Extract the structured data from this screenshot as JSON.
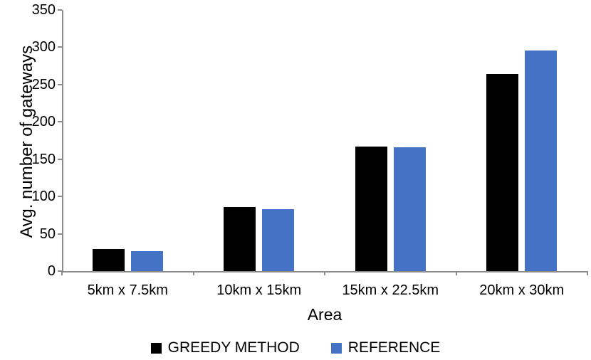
{
  "chart_data": {
    "type": "bar",
    "title": "",
    "categories": [
      "5km x 7.5km",
      "10km x 15km",
      "15km x 22.5km",
      "20km x 30km"
    ],
    "series": [
      {
        "name": "GREEDY METHOD",
        "color": "#000000",
        "values": [
          30,
          86,
          167,
          264
        ]
      },
      {
        "name": "REFERENCE",
        "color": "#4472C4",
        "values": [
          27,
          83,
          166,
          296
        ]
      }
    ],
    "xlabel": "Area",
    "ylabel": "Avg. number of gateways",
    "ylim": [
      0,
      350
    ],
    "ytick_step": 50,
    "yticks": [
      0,
      50,
      100,
      150,
      200,
      250,
      300,
      350
    ],
    "grid": false,
    "legend_position": "bottom",
    "axis_color": "#8c8c8c",
    "text_color": "#000000",
    "background_color": "#ffffff"
  }
}
